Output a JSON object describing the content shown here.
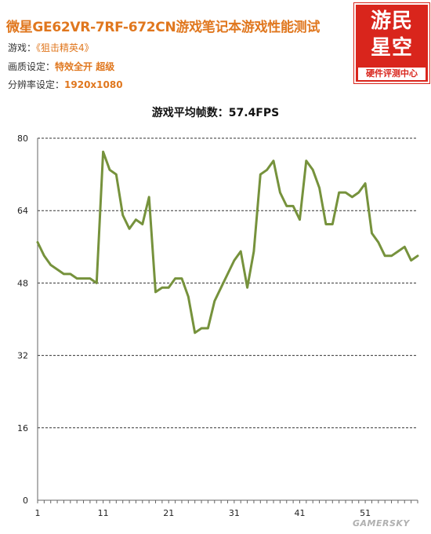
{
  "header": {
    "title": "微星GE62VR-7RF-672CN游戏笔记本游戏性能测试",
    "game_label": "游戏：",
    "game_value": "《狙击精英4》",
    "quality_label": "画质设定：",
    "quality_value": "特效全开  超级",
    "resolution_label": "分辨率设定：",
    "resolution_value": "1920x1080"
  },
  "logo": {
    "line1": "游民",
    "line2": "星空",
    "sub": "硬件评测中心",
    "color": "#d9251c"
  },
  "watermark": "GAMERSKY",
  "colors": {
    "accent": "#e0771e",
    "line": "#76923c"
  },
  "chart_data": {
    "type": "line",
    "title": "游戏平均帧数：57.4FPS",
    "xlabel": "",
    "ylabel": "",
    "ylim": [
      0,
      80
    ],
    "yticks": [
      0,
      16,
      32,
      48,
      64,
      80
    ],
    "xticks": [
      1,
      11,
      21,
      31,
      41,
      51
    ],
    "grid": "horizontal dashed",
    "series": [
      {
        "x": [
          1,
          2,
          3,
          4,
          5,
          6,
          7,
          8,
          9,
          10,
          11,
          12,
          13,
          14,
          15,
          16,
          17,
          18,
          19,
          20,
          21,
          22,
          23,
          24,
          25,
          26,
          27,
          28,
          29,
          30,
          31,
          32,
          33,
          34,
          35,
          36,
          37,
          38,
          39,
          40,
          41,
          42,
          43,
          44,
          45,
          46,
          47,
          48,
          49,
          50,
          51,
          52,
          53,
          54,
          55,
          56,
          57,
          58,
          59
        ],
        "values": [
          57,
          54,
          52,
          51,
          50,
          50,
          49,
          49,
          49,
          48,
          77,
          73,
          72,
          63,
          60,
          62,
          61,
          67,
          46,
          47,
          47,
          49,
          49,
          45,
          37,
          38,
          38,
          44,
          47,
          50,
          53,
          55,
          47,
          55,
          72,
          73,
          75,
          68,
          65,
          65,
          62,
          75,
          73,
          69,
          61,
          61,
          68,
          68,
          67,
          68,
          70,
          59,
          57,
          54,
          54,
          55,
          56,
          53,
          54
        ]
      }
    ]
  }
}
